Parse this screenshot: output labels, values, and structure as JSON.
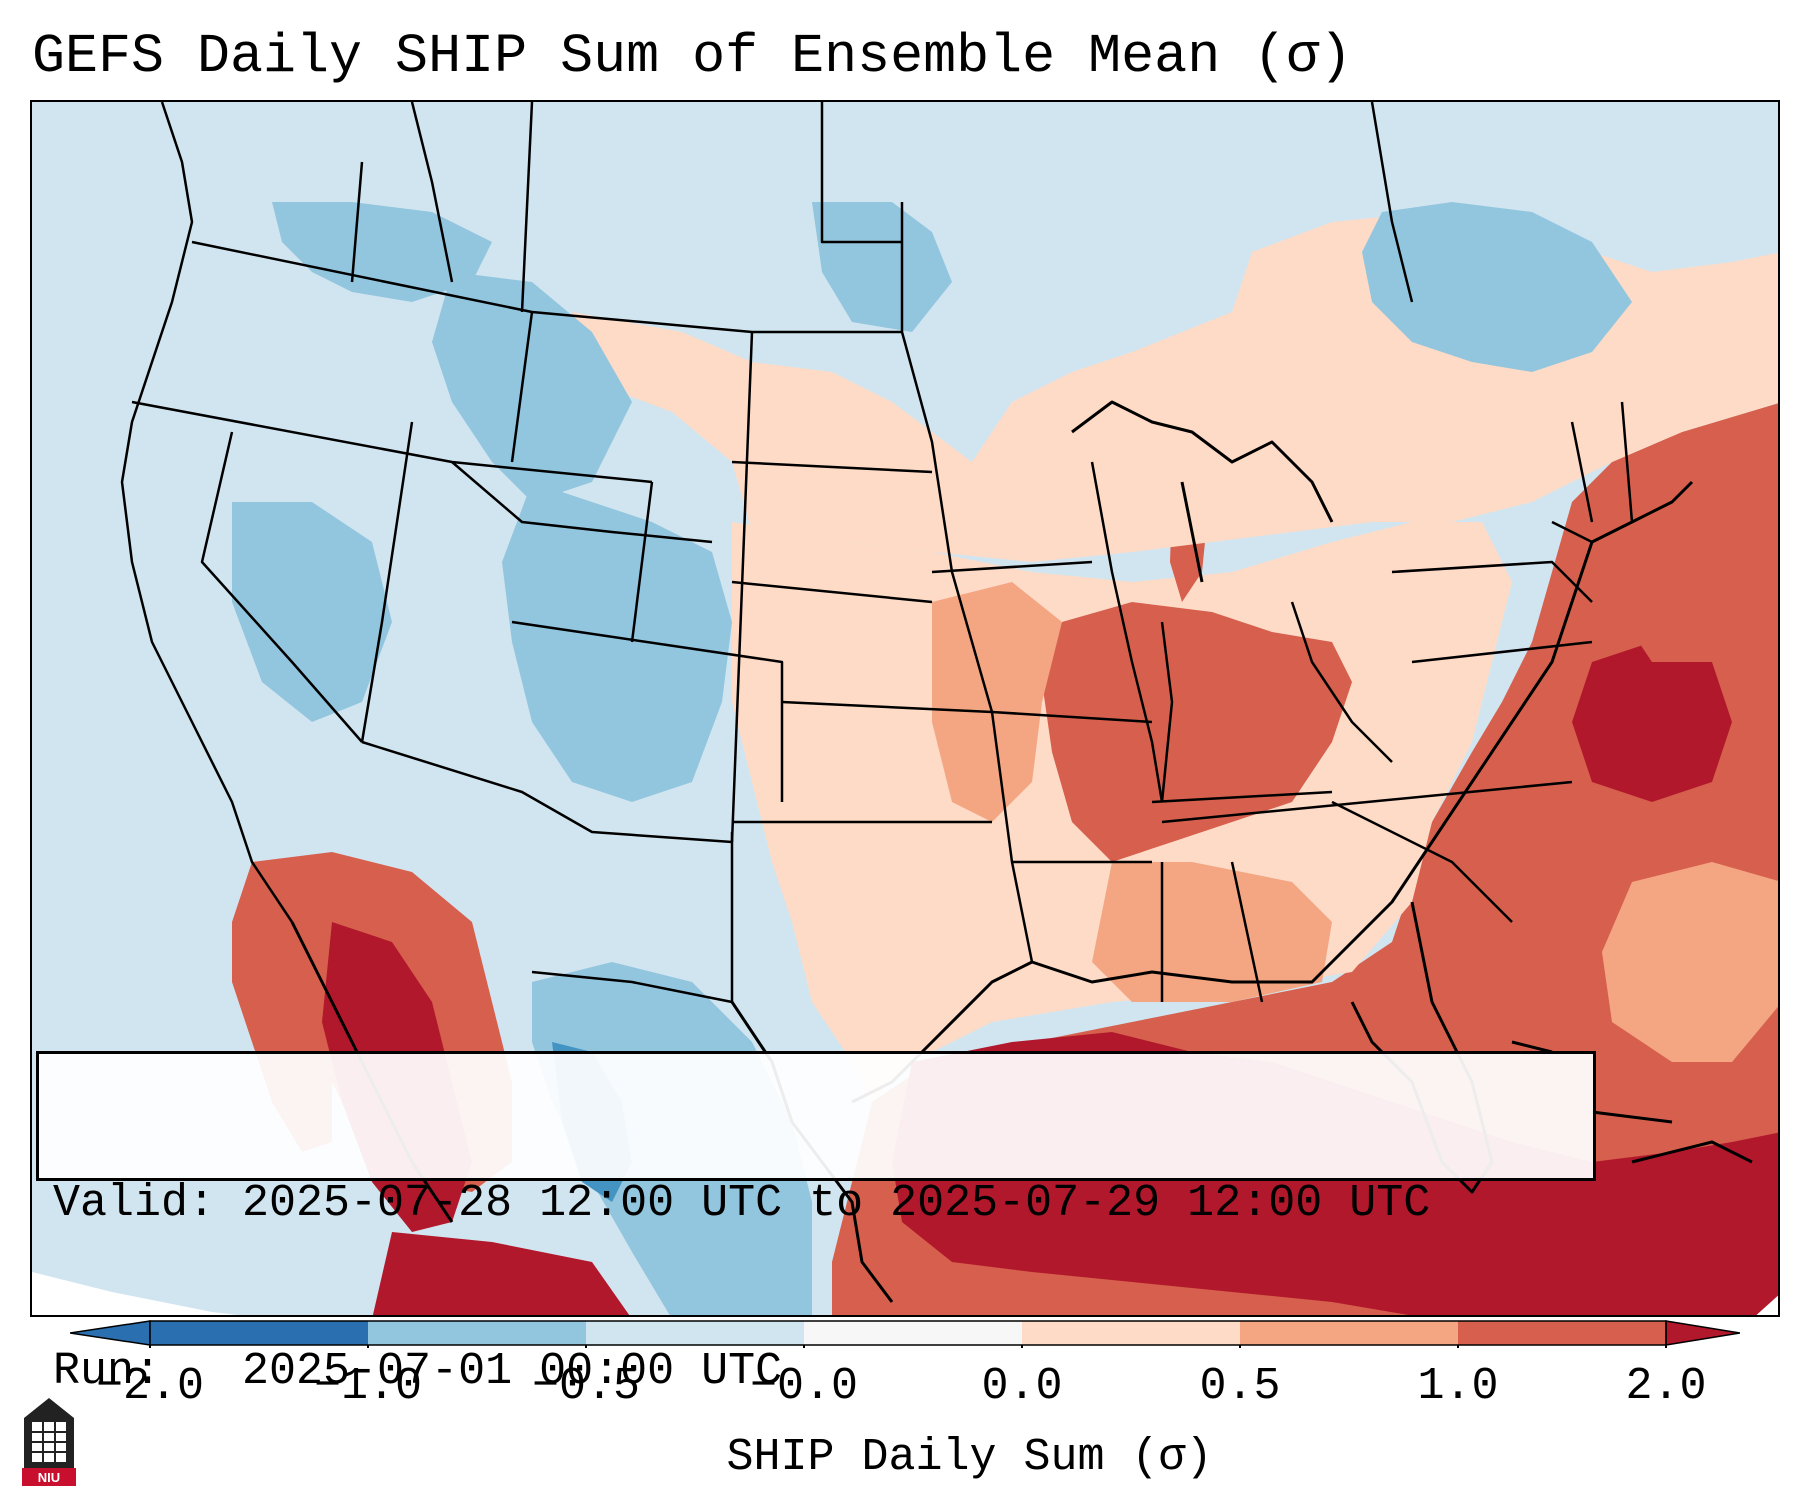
{
  "title": "GEFS Daily SHIP Sum of Ensemble Mean (σ)",
  "info": {
    "valid_line": "Valid: 2025-07-28 12:00 UTC to 2025-07-29 12:00 UTC",
    "run_line": "Run:   2025-07-01 00:00 UTC"
  },
  "colorbar": {
    "ticks": [
      "−2.0",
      "−1.0",
      "−0.5",
      "−0.0",
      "0.0",
      "0.5",
      "1.0",
      "2.0"
    ],
    "label": "SHIP Daily Sum (σ)",
    "colors": [
      "#2a6fb0",
      "#4393c3",
      "#92c5de",
      "#d1e5f0",
      "#f7f7f7",
      "#fddbc7",
      "#f4a582",
      "#d6604d",
      "#b2182b"
    ]
  },
  "map": {
    "region": "Contiguous United States",
    "colors": {
      "ocean_neutral": "#d1e5f0",
      "outside": "#ffffff",
      "neg_strong": "#4393c3",
      "neg_mid": "#92c5de",
      "neg_weak": "#d1e5f0",
      "pos_weak": "#fddbc7",
      "pos_mid": "#f4a582",
      "pos_strong": "#d6604d",
      "pos_max": "#b2182b"
    }
  },
  "logo": {
    "text": "NIU"
  }
}
